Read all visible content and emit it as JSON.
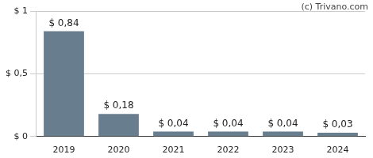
{
  "chart_data": {
    "type": "bar",
    "annotations": [
      "(c) Trivano.com"
    ],
    "categories": [
      "2019",
      "2020",
      "2021",
      "2022",
      "2023",
      "2024"
    ],
    "values": [
      0.84,
      0.18,
      0.04,
      0.04,
      0.04,
      0.03
    ],
    "value_labels": [
      "$ 0,84",
      "$ 0,18",
      "$ 0,04",
      "$ 0,04",
      "$ 0,04",
      "$ 0,03"
    ],
    "data_labels": true,
    "color": "#687e8f",
    "ylim": [
      0,
      1
    ],
    "yticks": [
      {
        "value": 0,
        "label": "$ 0"
      },
      {
        "value": 0.5,
        "label": "$ 0,5"
      },
      {
        "value": 1,
        "label": "$ 1"
      }
    ],
    "grid": true
  }
}
